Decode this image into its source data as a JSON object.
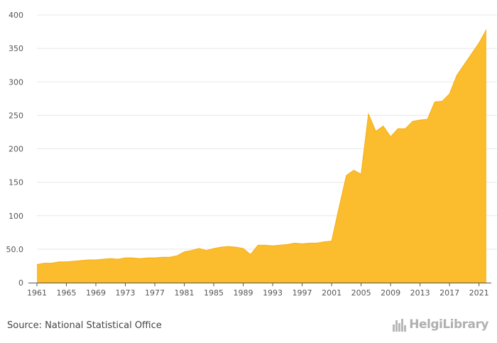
{
  "chart_data": {
    "type": "area",
    "x": [
      1961,
      1962,
      1963,
      1964,
      1965,
      1966,
      1967,
      1968,
      1969,
      1970,
      1971,
      1972,
      1973,
      1974,
      1975,
      1976,
      1977,
      1978,
      1979,
      1980,
      1981,
      1982,
      1983,
      1984,
      1985,
      1986,
      1987,
      1988,
      1989,
      1990,
      1991,
      1992,
      1993,
      1994,
      1995,
      1996,
      1997,
      1998,
      1999,
      2000,
      2001,
      2002,
      2003,
      2004,
      2005,
      2006,
      2007,
      2008,
      2009,
      2010,
      2011,
      2012,
      2013,
      2014,
      2015,
      2016,
      2017,
      2018,
      2019,
      2020,
      2021,
      2022
    ],
    "series": [
      {
        "values": [
          27,
          29,
          29,
          31,
          31,
          32,
          33,
          34,
          34,
          35,
          36,
          35,
          37,
          37,
          36,
          37,
          37,
          38,
          38,
          40,
          46,
          48,
          51,
          48,
          51,
          53,
          54,
          53,
          51,
          42,
          56,
          56,
          55,
          56,
          57,
          59,
          58,
          59,
          59,
          61,
          62,
          112,
          160,
          168,
          162,
          252,
          226,
          234,
          218,
          230,
          230,
          241,
          243,
          244,
          270,
          271,
          282,
          310,
          326,
          342,
          358,
          378
        ]
      }
    ],
    "title": "",
    "xlabel": "",
    "ylabel": "",
    "ylim": [
      0,
      400
    ],
    "yticks": [
      0,
      50,
      100,
      150,
      200,
      250,
      300,
      350,
      400
    ],
    "ytick_labels": [
      "0",
      "50.0",
      "100",
      "150",
      "200",
      "250",
      "300",
      "350",
      "400"
    ],
    "xticks": [
      1961,
      1965,
      1969,
      1973,
      1977,
      1981,
      1985,
      1989,
      1993,
      1997,
      2001,
      2005,
      2009,
      2013,
      2017,
      2021
    ],
    "grid": true,
    "legend": "none",
    "colors": {
      "fill": "#fbbd2d",
      "grid": "#e8e8e8",
      "axis": "#555555"
    }
  },
  "footer": {
    "source": "Source: National Statistical Office",
    "brand": "HelgiLibrary"
  }
}
